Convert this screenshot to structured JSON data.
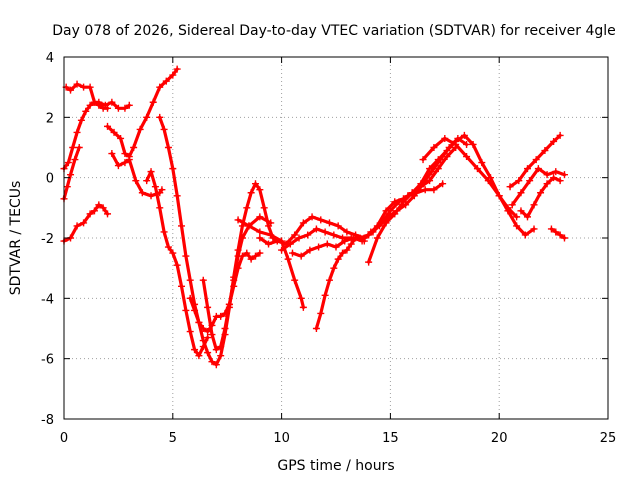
{
  "chart_data": {
    "type": "scatter",
    "title": "Day 078 of 2026, Sidereal Day-to-day VTEC variation (SDTVAR) for receiver 4gle",
    "xlabel": "GPS time / hours",
    "ylabel": "SDTVAR / TECUs",
    "xlim": [
      0,
      25
    ],
    "ylim": [
      -8,
      4
    ],
    "xticks": [
      0,
      5,
      10,
      15,
      20,
      25
    ],
    "yticks": [
      -8,
      -6,
      -4,
      -2,
      0,
      2,
      4
    ],
    "grid": true,
    "marker": "plus",
    "color": "#ff0000",
    "series": [
      {
        "x": [
          0.0,
          0.2,
          0.4,
          0.6,
          0.8,
          1.0,
          1.2,
          1.4,
          1.6,
          1.8,
          2.0
        ],
        "y": [
          0.3,
          0.5,
          1.0,
          1.5,
          1.9,
          2.2,
          2.4,
          2.5,
          2.4,
          2.3,
          2.3
        ]
      },
      {
        "x": [
          0.1,
          0.3,
          0.6,
          0.9,
          1.2,
          1.4,
          1.6,
          1.9,
          2.2,
          2.5,
          2.8,
          3.0
        ],
        "y": [
          3.0,
          2.9,
          3.1,
          3.0,
          3.0,
          2.5,
          2.5,
          2.4,
          2.5,
          2.3,
          2.3,
          2.4
        ]
      },
      {
        "x": [
          0.0,
          0.3,
          0.6,
          0.9,
          1.2,
          1.4,
          1.6,
          1.8,
          2.0
        ],
        "y": [
          -2.1,
          -2.0,
          -1.6,
          -1.5,
          -1.2,
          -1.1,
          -0.9,
          -1.0,
          -1.2
        ]
      },
      {
        "x": [
          0.0,
          0.15,
          0.3,
          0.5,
          0.7
        ],
        "y": [
          -0.7,
          -0.3,
          0.1,
          0.6,
          1.0
        ]
      },
      {
        "x": [
          2.0,
          2.3,
          2.6,
          2.8,
          3.0,
          3.2,
          3.5,
          3.8,
          4.1,
          4.4,
          4.7,
          5.0,
          5.2
        ],
        "y": [
          1.7,
          1.5,
          1.3,
          0.8,
          0.7,
          1.0,
          1.6,
          2.0,
          2.5,
          3.0,
          3.2,
          3.4,
          3.6
        ]
      },
      {
        "x": [
          2.2,
          2.5,
          2.8,
          3.0,
          3.3,
          3.6,
          4.0,
          4.4,
          4.5
        ],
        "y": [
          0.8,
          0.4,
          0.5,
          0.6,
          -0.1,
          -0.5,
          -0.6,
          -0.5,
          -0.4
        ]
      },
      {
        "x": [
          4.4,
          4.6,
          4.8,
          5.0,
          5.2,
          5.4,
          5.6,
          5.8,
          6.0,
          6.2,
          6.4,
          6.6,
          6.8,
          7.0,
          7.2,
          7.4,
          7.6,
          7.8,
          8.0,
          8.2,
          8.4,
          8.6,
          8.8,
          9.0,
          9.2,
          9.4,
          9.6,
          9.8
        ],
        "y": [
          2.0,
          1.6,
          1.0,
          0.3,
          -0.6,
          -1.6,
          -2.6,
          -3.4,
          -4.2,
          -4.8,
          -5.4,
          -5.8,
          -6.1,
          -6.2,
          -5.9,
          -5.2,
          -4.3,
          -3.3,
          -2.4,
          -1.6,
          -1.0,
          -0.5,
          -0.2,
          -0.4,
          -1.0,
          -1.6,
          -2.0,
          -2.1
        ]
      },
      {
        "x": [
          3.8,
          4.0,
          4.2,
          4.4,
          4.6,
          4.8,
          5.0,
          5.2,
          5.4,
          5.6,
          5.8,
          6.0,
          6.2,
          6.4,
          6.6
        ],
        "y": [
          -0.1,
          0.2,
          -0.3,
          -1.0,
          -1.8,
          -2.3,
          -2.5,
          -2.9,
          -3.6,
          -4.4,
          -5.1,
          -5.7,
          -5.9,
          -5.6,
          -5.3
        ]
      },
      {
        "x": [
          5.8,
          6.0,
          6.2,
          6.4,
          6.6,
          6.8,
          7.0,
          7.2,
          7.4,
          7.6,
          7.8,
          8.0,
          8.2,
          8.4,
          8.6,
          8.8,
          9.0
        ],
        "y": [
          -4.0,
          -4.4,
          -4.8,
          -5.0,
          -5.1,
          -4.9,
          -4.6,
          -4.6,
          -4.5,
          -4.2,
          -3.6,
          -3.0,
          -2.6,
          -2.5,
          -2.7,
          -2.6,
          -2.5
        ]
      },
      {
        "x": [
          6.4,
          6.6,
          6.8,
          7.0,
          7.2,
          7.4,
          7.6,
          7.8,
          8.0,
          8.2,
          8.5,
          9.0,
          9.5
        ],
        "y": [
          -3.4,
          -4.3,
          -5.2,
          -5.7,
          -5.6,
          -5.0,
          -4.2,
          -3.4,
          -2.6,
          -2.0,
          -1.6,
          -1.3,
          -1.5
        ]
      },
      {
        "x": [
          8.0,
          8.5,
          9.0,
          9.5,
          10.0,
          10.3,
          10.6,
          10.9,
          11.0
        ],
        "y": [
          -1.4,
          -1.6,
          -1.8,
          -1.9,
          -2.1,
          -2.7,
          -3.4,
          -4.0,
          -4.3
        ]
      },
      {
        "x": [
          9.0,
          9.4,
          9.8,
          10.2,
          10.6,
          11.0,
          11.4,
          11.8,
          12.2,
          12.6,
          13.0,
          13.4,
          13.8,
          14.2,
          14.6,
          15.0,
          15.4,
          15.8,
          16.2,
          16.6,
          17.0,
          17.4
        ],
        "y": [
          -2.0,
          -2.2,
          -2.1,
          -2.2,
          -1.9,
          -1.5,
          -1.3,
          -1.4,
          -1.5,
          -1.6,
          -1.8,
          -1.9,
          -2.0,
          -1.8,
          -1.5,
          -1.1,
          -0.8,
          -0.6,
          -0.5,
          -0.4,
          -0.4,
          -0.2
        ]
      },
      {
        "x": [
          10.0,
          10.4,
          10.8,
          11.2,
          11.6,
          12.0,
          12.4,
          12.8,
          13.2,
          13.6,
          14.0,
          14.4,
          14.8,
          15.2,
          15.6,
          16.0,
          16.4,
          16.8,
          17.2,
          17.6,
          18.0
        ],
        "y": [
          -2.4,
          -2.2,
          -2.0,
          -1.9,
          -1.7,
          -1.8,
          -1.9,
          -2.0,
          -2.0,
          -2.0,
          -1.9,
          -1.6,
          -1.1,
          -0.8,
          -0.7,
          -0.5,
          -0.3,
          -0.1,
          0.3,
          0.7,
          1.0
        ]
      },
      {
        "x": [
          10.5,
          10.9,
          11.3,
          11.7,
          12.1,
          12.5,
          12.9,
          13.3,
          13.7,
          14.1,
          14.5,
          14.9,
          15.3,
          15.7,
          16.1,
          16.5,
          16.9,
          17.3,
          17.7,
          18.1,
          18.5
        ],
        "y": [
          -2.5,
          -2.6,
          -2.4,
          -2.3,
          -2.2,
          -2.3,
          -2.1,
          -2.0,
          -2.1,
          -1.8,
          -1.6,
          -1.3,
          -1.1,
          -0.9,
          -0.6,
          -0.2,
          0.2,
          0.6,
          1.0,
          1.3,
          1.1
        ]
      },
      {
        "x": [
          11.6,
          11.8,
          12.0,
          12.2,
          12.4,
          12.6,
          12.8,
          13.0,
          13.2,
          13.4,
          13.6,
          13.8
        ],
        "y": [
          -5.0,
          -4.5,
          -3.9,
          -3.4,
          -3.0,
          -2.7,
          -2.5,
          -2.4,
          -2.2,
          -2.0,
          -2.0,
          -2.1
        ]
      },
      {
        "x": [
          14.0,
          14.4,
          14.8,
          15.2,
          15.6,
          16.0,
          16.4,
          16.8,
          17.2,
          17.6,
          18.0,
          18.4,
          18.8,
          19.2,
          19.6,
          20.0,
          20.4,
          20.8,
          21.2,
          21.6
        ],
        "y": [
          -2.8,
          -2.0,
          -1.5,
          -1.2,
          -0.8,
          -0.5,
          -0.2,
          0.3,
          0.6,
          0.9,
          1.2,
          1.4,
          1.1,
          0.5,
          0.0,
          -0.6,
          -1.1,
          -1.6,
          -1.9,
          -1.7
        ]
      },
      {
        "x": [
          16.5,
          17.0,
          17.5,
          18.0,
          18.5,
          19.0,
          19.5,
          20.0,
          20.4,
          20.8
        ],
        "y": [
          0.6,
          1.0,
          1.3,
          1.1,
          0.7,
          0.3,
          -0.1,
          -0.6,
          -1.0,
          -1.3
        ]
      },
      {
        "x": [
          20.5,
          20.9,
          21.3,
          21.7,
          22.1,
          22.5,
          22.8
        ],
        "y": [
          -0.3,
          -0.1,
          0.3,
          0.6,
          0.9,
          1.2,
          1.4
        ]
      },
      {
        "x": [
          20.6,
          21.0,
          21.4,
          21.8,
          22.2,
          22.6,
          23.0
        ],
        "y": [
          -0.9,
          -0.5,
          -0.1,
          0.3,
          0.1,
          0.2,
          0.1
        ]
      },
      {
        "x": [
          21.0,
          21.3,
          21.6,
          21.9,
          22.2,
          22.5,
          22.8
        ],
        "y": [
          -1.1,
          -1.3,
          -0.9,
          -0.5,
          -0.2,
          0.0,
          -0.1
        ]
      },
      {
        "x": [
          22.4,
          22.6,
          22.8,
          23.0
        ],
        "y": [
          -1.7,
          -1.8,
          -1.9,
          -2.0
        ]
      }
    ]
  }
}
